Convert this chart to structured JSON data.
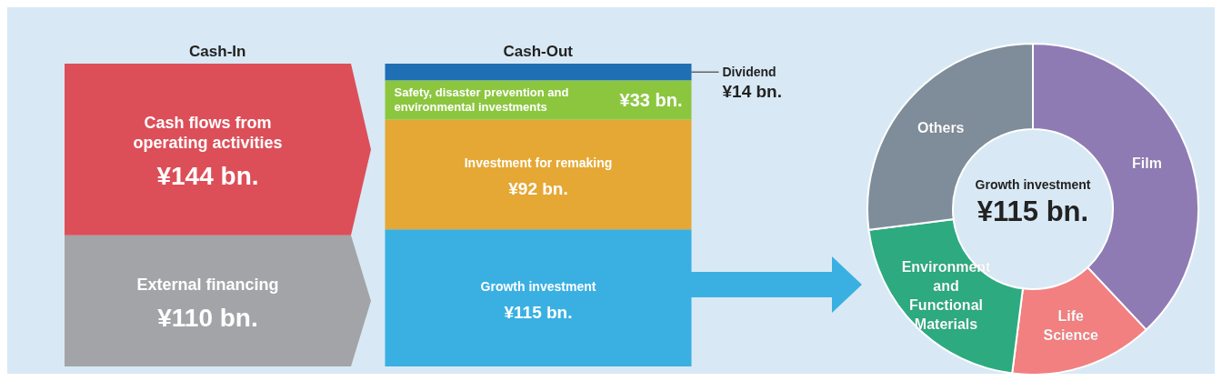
{
  "chart_data": [
    {
      "type": "bar",
      "stacked": true,
      "categories": [
        "Cash-In",
        "Cash-Out"
      ],
      "series": [
        {
          "name": "External financing",
          "color": "#a3a4a7",
          "values": [
            110,
            null
          ],
          "value_labels": [
            "¥110 bn.",
            null
          ]
        },
        {
          "name": "Cash flows from operating activities",
          "color": "#dc4f58",
          "values": [
            144,
            null
          ],
          "value_labels": [
            "¥144 bn.",
            null
          ]
        },
        {
          "name": "Growth investment",
          "color": "#3ab0e2",
          "values": [
            null,
            115
          ],
          "value_labels": [
            null,
            "¥115 bn."
          ]
        },
        {
          "name": "Investment for remaking",
          "color": "#e5a835",
          "values": [
            null,
            92
          ],
          "value_labels": [
            null,
            "¥92 bn."
          ]
        },
        {
          "name": "Safety, disaster prevention and environmental investments",
          "color": "#8cc63f",
          "values": [
            null,
            33
          ],
          "value_labels": [
            null,
            "¥33 bn."
          ]
        },
        {
          "name": "Dividend",
          "color": "#1f6fb5",
          "values": [
            null,
            14
          ],
          "value_labels": [
            null,
            "¥14 bn."
          ]
        }
      ]
    },
    {
      "type": "donut",
      "title": "Growth investment",
      "subtitle": "¥115 bn.",
      "categories": [
        "Film",
        "Life Science",
        "Environment and Functional Materials",
        "Others"
      ],
      "values": [
        38,
        14,
        21,
        27
      ],
      "colors": [
        "#8f7bb3",
        "#f28080",
        "#2daa7f",
        "#7f8c99"
      ]
    }
  ]
}
